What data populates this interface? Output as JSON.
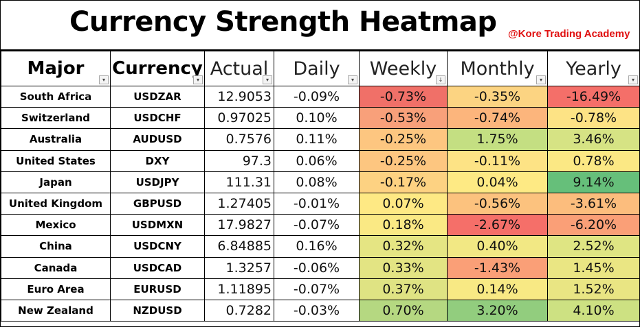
{
  "title": "Currency Strength Heatmap",
  "brand": "@Kore Trading Academy",
  "headers": {
    "major": "Major",
    "currency": "Currency",
    "actual": "Actual",
    "daily": "Daily",
    "weekly": "Weekly",
    "monthly": "Monthly",
    "yearly": "Yearly"
  },
  "filter_icons": {
    "default": "▾",
    "sorted": "↓"
  },
  "rows": [
    {
      "major": "South Africa",
      "currency": "USDZAR",
      "actual": "12.9053",
      "daily": "-0.09%",
      "weekly": "-0.73%",
      "monthly": "-0.35%",
      "yearly": "-16.49%",
      "colors": {
        "weekly": "#f07068",
        "monthly": "#fcd482",
        "yearly": "#f46f69"
      }
    },
    {
      "major": "Switzerland",
      "currency": "USDCHF",
      "actual": "0.97025",
      "daily": "0.10%",
      "weekly": "-0.53%",
      "monthly": "-0.74%",
      "yearly": "-0.78%",
      "colors": {
        "weekly": "#f8a07a",
        "monthly": "#fcb57c",
        "yearly": "#fde385"
      }
    },
    {
      "major": "Australia",
      "currency": "AUDUSD",
      "actual": "0.7576",
      "daily": "0.11%",
      "weekly": "-0.25%",
      "monthly": "1.75%",
      "yearly": "3.46%",
      "colors": {
        "weekly": "#fdc680",
        "monthly": "#c4df82",
        "yearly": "#d6e384"
      }
    },
    {
      "major": "United States",
      "currency": "DXY",
      "actual": "97.3",
      "daily": "0.06%",
      "weekly": "-0.25%",
      "monthly": "-0.11%",
      "yearly": "0.78%",
      "colors": {
        "weekly": "#fdc680",
        "monthly": "#fde385",
        "yearly": "#fbe884"
      }
    },
    {
      "major": "Japan",
      "currency": "USDJPY",
      "actual": "111.31",
      "daily": "0.08%",
      "weekly": "-0.17%",
      "monthly": "0.04%",
      "yearly": "9.14%",
      "colors": {
        "weekly": "#fdd282",
        "monthly": "#feea84",
        "yearly": "#66bf7a"
      }
    },
    {
      "major": "United Kingdom",
      "currency": "GBPUSD",
      "actual": "1.27405",
      "daily": "-0.01%",
      "weekly": "0.07%",
      "monthly": "-0.56%",
      "yearly": "-3.61%",
      "colors": {
        "weekly": "#fee984",
        "monthly": "#fcc27e",
        "yearly": "#fcbd7d"
      }
    },
    {
      "major": "Mexico",
      "currency": "USDMXN",
      "actual": "17.9827",
      "daily": "-0.07%",
      "weekly": "0.18%",
      "monthly": "-2.67%",
      "yearly": "-6.20%",
      "colors": {
        "weekly": "#fae984",
        "monthly": "#f56f69",
        "yearly": "#fa9f77"
      }
    },
    {
      "major": "China",
      "currency": "USDCNY",
      "actual": "6.84885",
      "daily": "0.16%",
      "weekly": "0.32%",
      "monthly": "0.40%",
      "yearly": "2.52%",
      "colors": {
        "weekly": "#e5e583",
        "monthly": "#f2e884",
        "yearly": "#dfe583"
      }
    },
    {
      "major": "Canada",
      "currency": "USDCAD",
      "actual": "1.3257",
      "daily": "-0.06%",
      "weekly": "0.33%",
      "monthly": "-1.43%",
      "yearly": "1.45%",
      "colors": {
        "weekly": "#e3e483",
        "monthly": "#fa9f77",
        "yearly": "#eae683"
      }
    },
    {
      "major": "Euro Area",
      "currency": "EURUSD",
      "actual": "1.11895",
      "daily": "-0.07%",
      "weekly": "0.37%",
      "monthly": "0.14%",
      "yearly": "1.52%",
      "colors": {
        "weekly": "#dfe383",
        "monthly": "#f8e984",
        "yearly": "#e9e583"
      }
    },
    {
      "major": "New Zealand",
      "currency": "NZDUSD",
      "actual": "0.7282",
      "daily": "-0.03%",
      "weekly": "0.70%",
      "monthly": "3.20%",
      "yearly": "4.10%",
      "colors": {
        "weekly": "#b5d881",
        "monthly": "#92cd7e",
        "yearly": "#cde182"
      }
    }
  ]
}
